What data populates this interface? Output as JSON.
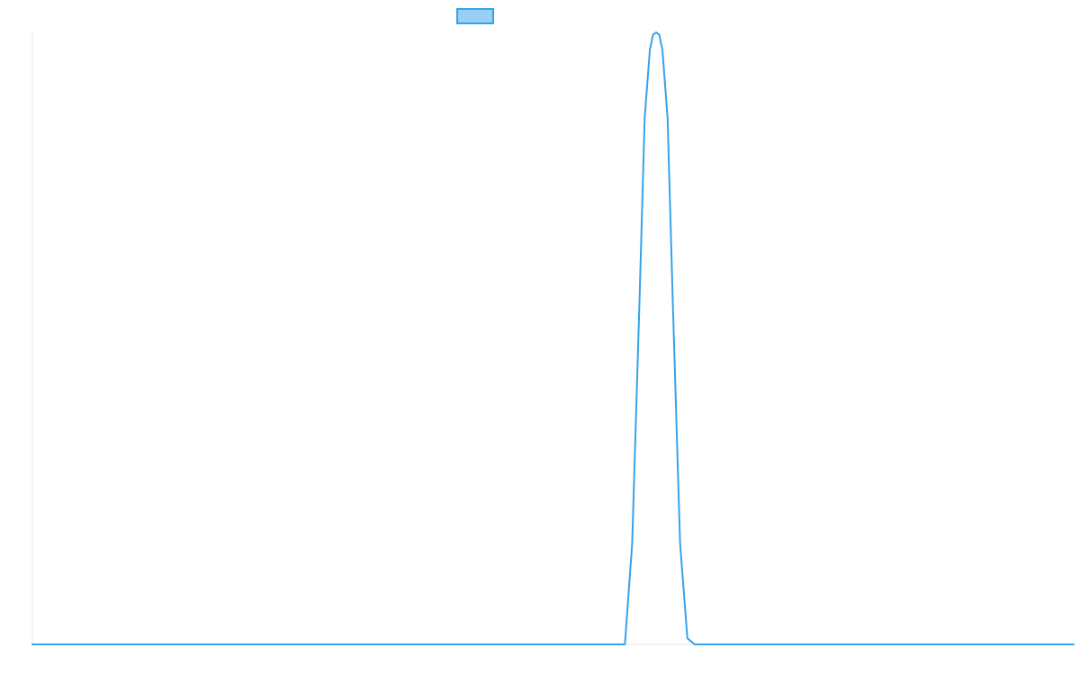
{
  "chart_data": {
    "type": "line",
    "title": "",
    "xlabel": "",
    "ylabel": "",
    "x_ticks_visible": false,
    "y_ticks_visible": false,
    "grid": false,
    "legend": {
      "position": "top-center",
      "entries": [
        {
          "label": "",
          "swatch_color": "#9ad0f5",
          "border_color": "#36a2eb"
        }
      ]
    },
    "xlim": [
      0,
      100
    ],
    "ylim": [
      0,
      1
    ],
    "series": [
      {
        "color": "#36a2eb",
        "x": [
          0,
          10,
          20,
          30,
          40,
          50,
          56.9,
          57.6,
          58.3,
          58.8,
          59.3,
          59.6,
          59.9,
          60.2,
          60.5,
          61.0,
          61.5,
          62.2,
          62.9,
          63.6,
          70,
          80,
          90,
          100
        ],
        "y": [
          0,
          0,
          0,
          0,
          0,
          0,
          0,
          0.165,
          0.56,
          0.86,
          0.972,
          0.996,
          1.0,
          0.996,
          0.972,
          0.86,
          0.56,
          0.165,
          0.01,
          0,
          0,
          0,
          0,
          0
        ]
      }
    ]
  }
}
